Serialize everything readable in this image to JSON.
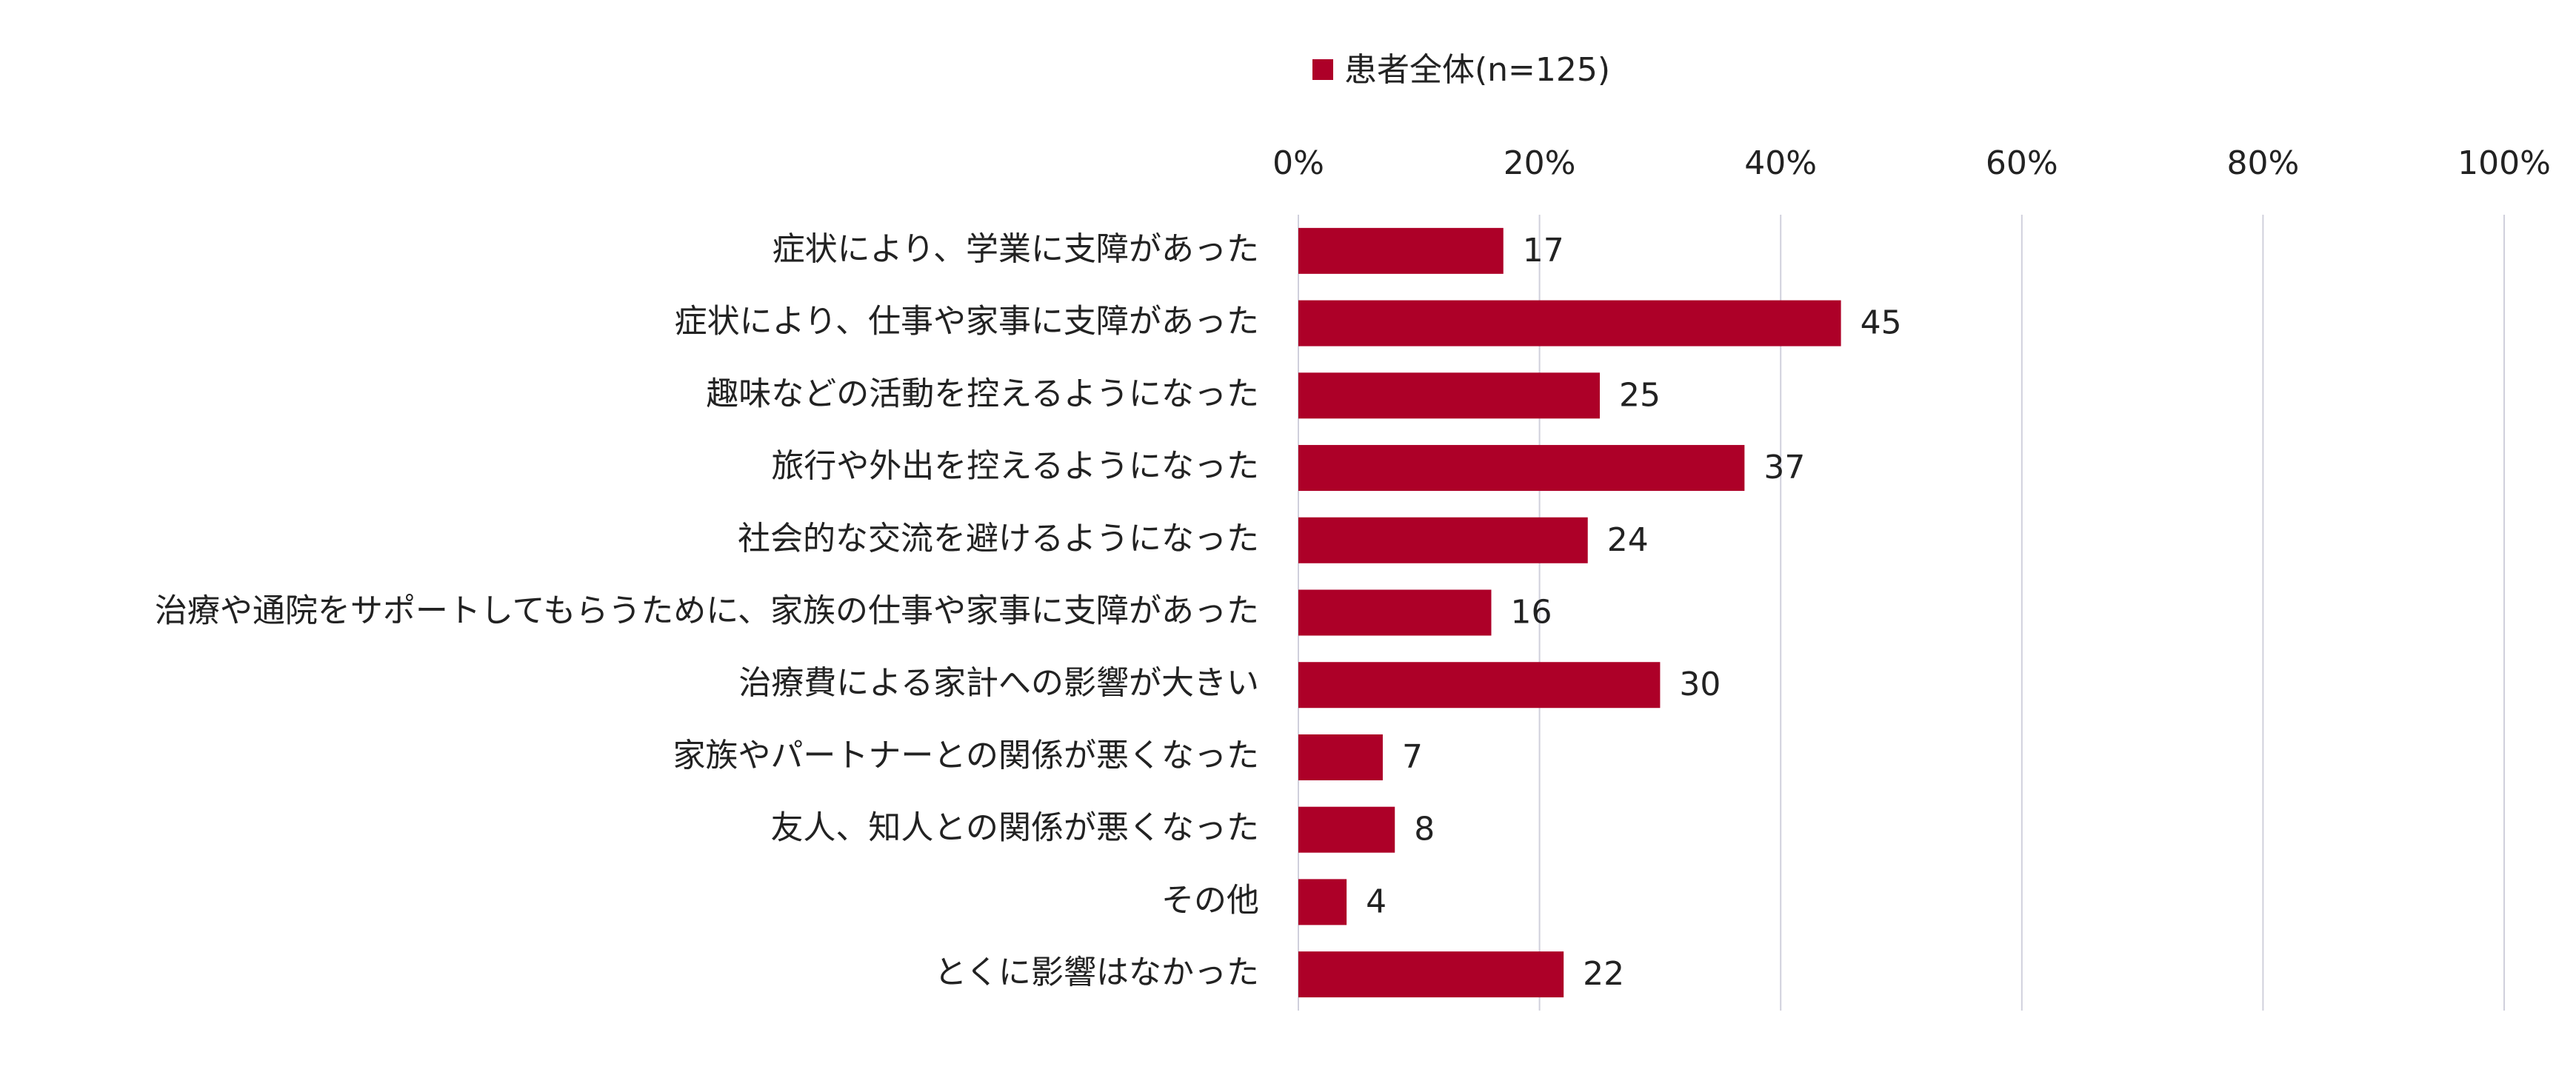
{
  "chart_data": {
    "type": "hbar",
    "categories": [
      "症状により、学業に支障があった",
      "症状により、仕事や家事に支障があった",
      "趣味などの活動を控えるようになった",
      "旅行や外出を控えるようになった",
      "社会的な交流を避けるようになった",
      "治療や通院をサポートしてもらうために、家族の仕事や家事に支障があった",
      "治療費による家計への影響が大きい",
      "家族やパートナーとの関係が悪くなった",
      "友人、知人との関係が悪くなった",
      "その他",
      "とくに影響はなかった"
    ],
    "series": [
      {
        "name": "患者全体(n=125)",
        "color": "#ad0028",
        "values": [
          17,
          45,
          25,
          37,
          24,
          16,
          30,
          7,
          8,
          4,
          22
        ]
      }
    ],
    "xlim": [
      0,
      100
    ],
    "xticks": [
      {
        "value": 0,
        "label": "0%"
      },
      {
        "value": 20,
        "label": "20%"
      },
      {
        "value": 40,
        "label": "40%"
      },
      {
        "value": 60,
        "label": "60%"
      },
      {
        "value": 80,
        "label": "80%"
      },
      {
        "value": 100,
        "label": "100%"
      }
    ],
    "grid": true,
    "legend": "top"
  }
}
